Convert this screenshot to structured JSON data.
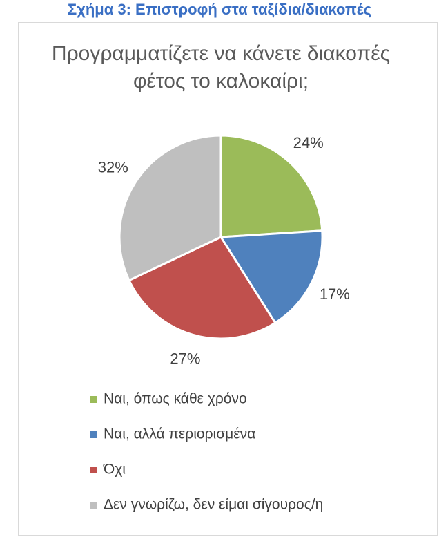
{
  "header": {
    "title": "Σχήμα 3: Επιστροφή στα ταξίδια/διακοπές"
  },
  "chart_data": {
    "type": "pie",
    "title": "Προγραμματίζετε να κάνετε διακοπές φέτος το καλοκαίρι;",
    "categories": [
      "Ναι, όπως κάθε χρόνο",
      "Ναι, αλλά περιορισμένα",
      "Όχι",
      "Δεν γνωρίζω, δεν είμαι σίγουρος/η"
    ],
    "values": [
      24,
      17,
      27,
      32
    ],
    "value_labels": [
      "24%",
      "17%",
      "27%",
      "32%"
    ],
    "colors": [
      "#9bbb59",
      "#4f81bd",
      "#c0504d",
      "#bfbfbf"
    ],
    "legend": "bottom"
  }
}
